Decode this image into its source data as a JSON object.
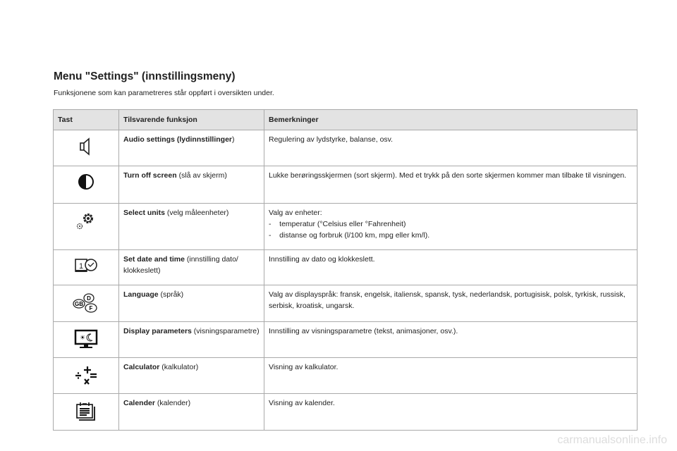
{
  "title": "Menu \"Settings\" (innstillingsmeny)",
  "intro": "Funksjonene som kan parametreres står oppført i oversikten under.",
  "headers": [
    "Tast",
    "Tilsvarende funksjon",
    "Bemerkninger"
  ],
  "rows": [
    {
      "icon": "speaker-icon",
      "func_bold": "Audio settings (lydinnstillinger",
      "func_rest": ")",
      "remarks": [
        "Regulering av lydstyrke, balanse, osv."
      ]
    },
    {
      "icon": "half-circle-icon",
      "func_bold": "Turn off screen",
      "func_rest": " (slå av skjerm)",
      "remarks": [
        "Lukke berøringsskjermen (sort skjerm). Med et trykk på den sorte skjermen kommer man tilbake til visningen."
      ]
    },
    {
      "icon": "gears-icon",
      "func_bold": "Select units",
      "func_rest": " (velg måleenheter)",
      "remarks": [
        "Valg av enheter:",
        "-    temperatur (°Celsius eller °Fahrenheit)",
        "-    distanse og forbruk (l/100 km, mpg eller km/l)."
      ]
    },
    {
      "icon": "date-time-icon",
      "func_bold": "Set date and time",
      "func_rest": " (innstilling dato/ klokkeslett)",
      "remarks": [
        "Innstilling av dato og klokkeslett."
      ]
    },
    {
      "icon": "language-icon",
      "func_bold": "Language",
      "func_rest": " (språk)",
      "remarks": [
        "Valg av displayspråk: fransk, engelsk, italiensk, spansk, tysk, nederlandsk, portugisisk, polsk, tyrkisk, russisk, serbisk, kroatisk, ungarsk."
      ]
    },
    {
      "icon": "display-icon",
      "func_bold": "Display parameters",
      "func_rest": " (visningsparametre)",
      "remarks": [
        "Innstilling av visningsparametre (tekst, animasjoner, osv.)."
      ]
    },
    {
      "icon": "calculator-icon",
      "func_bold": "Calculator",
      "func_rest": " (kalkulator)",
      "remarks": [
        "Visning av kalkulator."
      ]
    },
    {
      "icon": "calendar-icon",
      "func_bold": "Calender",
      "func_rest": " (kalender)",
      "remarks": [
        "Visning av kalender."
      ]
    }
  ],
  "language_icon_labels": [
    "GB",
    "D",
    "F"
  ],
  "date_icon_label": "1",
  "watermark": "carmanualsonline.info"
}
